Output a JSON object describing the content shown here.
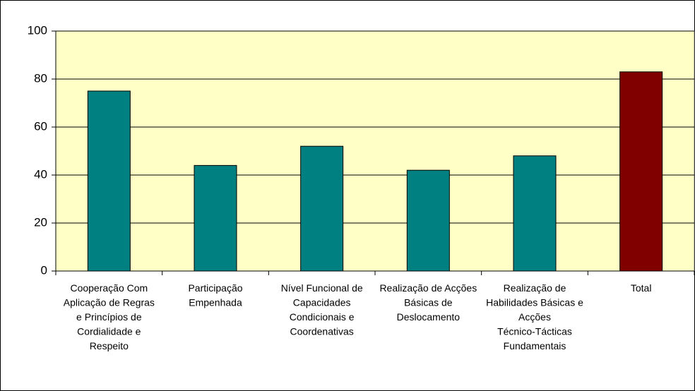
{
  "chart_data": {
    "type": "bar",
    "categories": [
      "Cooperação Com Aplicação de Regras e Princípios de Cordialidade e Respeito",
      "Participação Empenhada",
      "Nível Funcional de Capacidades Condicionais e Coordenativas",
      "Realização de Acções Básicas de Deslocamento",
      "Realização de Habilidades Básicas e Acções Técnico-Tácticas Fundamentais",
      "Total"
    ],
    "values": [
      75,
      44,
      52,
      42,
      48,
      83
    ],
    "colors": [
      "#008080",
      "#008080",
      "#008080",
      "#008080",
      "#008080",
      "#800000"
    ],
    "ylim": [
      0,
      100
    ],
    "yticks": [
      0,
      20,
      40,
      60,
      80,
      100
    ],
    "grid": true
  }
}
